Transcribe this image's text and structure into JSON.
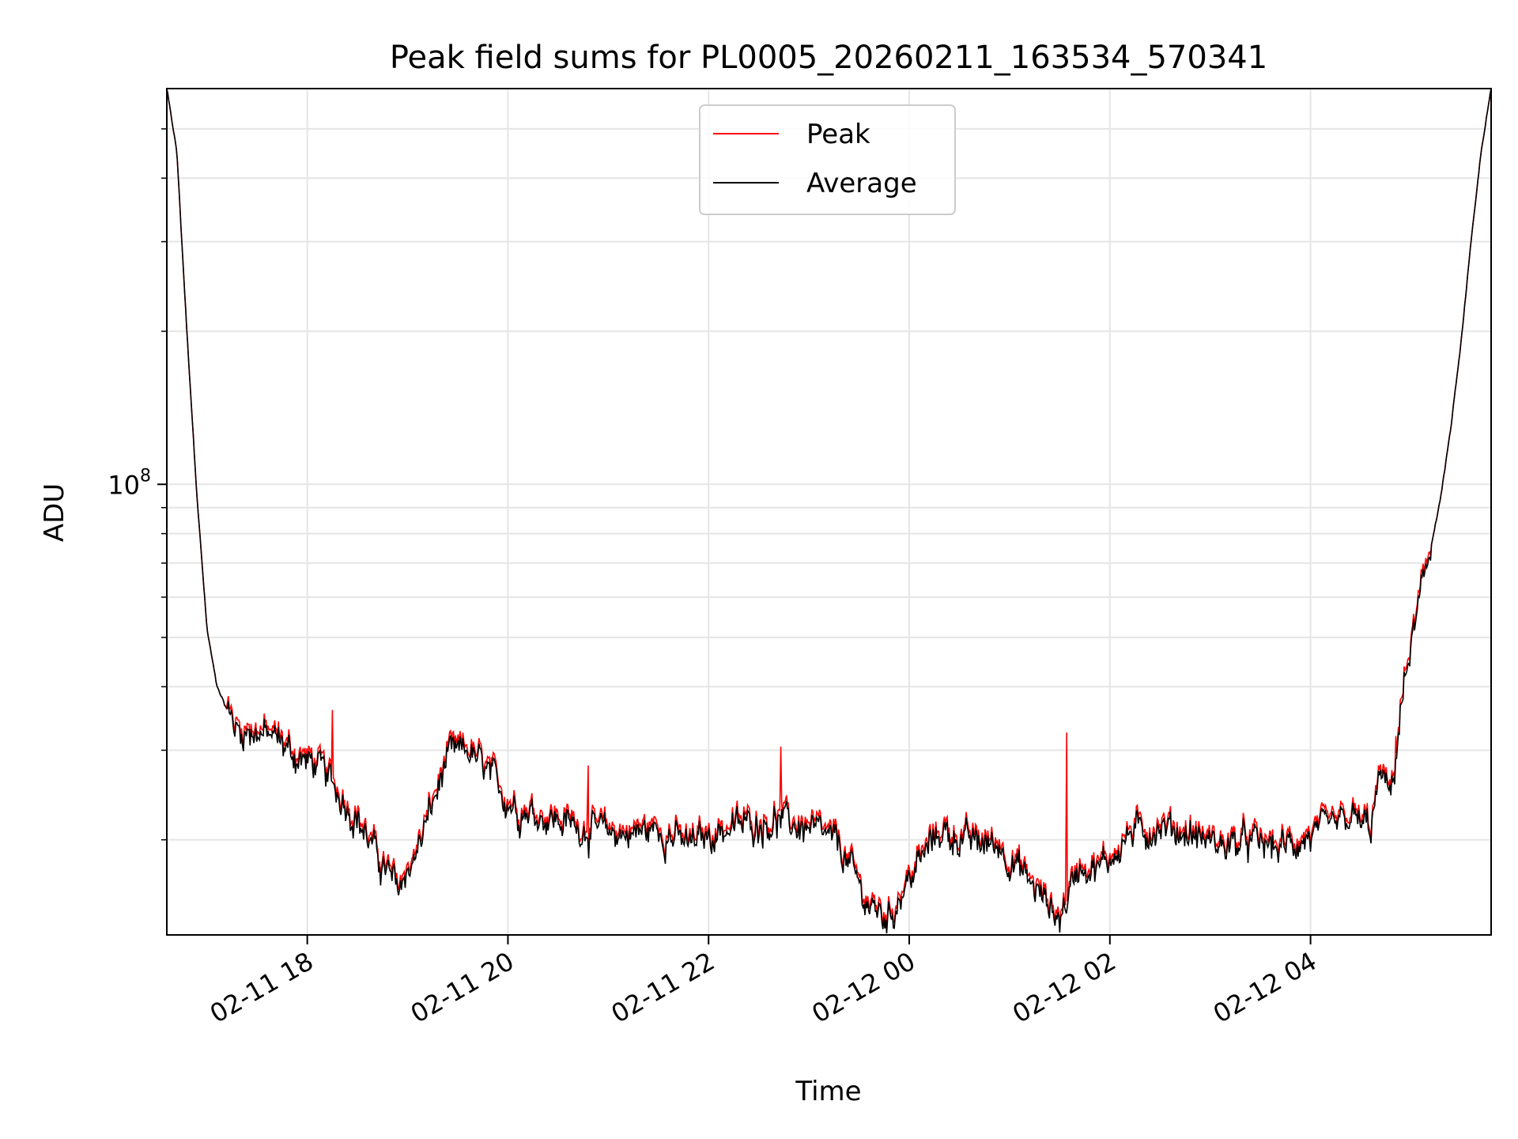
{
  "chart_data": {
    "type": "line",
    "title": "Peak field sums for PL0005_20260211_163534_570341",
    "xlabel": "Time",
    "ylabel": "ADU",
    "yscale": "log",
    "ylim": [
      13000000,
      600000000
    ],
    "xlim_hours": [
      16.6,
      29.8
    ],
    "grid": true,
    "legend_position": "upper center",
    "x_tick_hours": [
      18,
      20,
      22,
      24,
      26,
      28
    ],
    "x_tick_labels": [
      "02-11 18",
      "02-11 20",
      "02-11 22",
      "02-12 00",
      "02-12 02",
      "02-12 04"
    ],
    "y_major_ticks": [
      {
        "value": 100000000,
        "base": "10",
        "exp": "8"
      }
    ],
    "y_minor_ticks": [
      20000000,
      30000000,
      40000000,
      50000000,
      60000000,
      70000000,
      80000000,
      90000000,
      200000000,
      300000000,
      400000000,
      500000000
    ],
    "series_peak_name": "Peak",
    "series_peak_color": "#ff0000",
    "series_avg_name": "Average",
    "series_avg_color": "#000000",
    "average_profile": {
      "hours": [
        16.6,
        16.7,
        16.8,
        16.9,
        17.0,
        17.1,
        17.2,
        17.3,
        17.5,
        17.7,
        17.9,
        18.1,
        18.3,
        18.5,
        18.7,
        18.9,
        19.1,
        19.2,
        19.3,
        19.4,
        19.6,
        19.8,
        20.0,
        20.1,
        20.3,
        20.6,
        20.9,
        21.2,
        21.5,
        21.8,
        22.1,
        22.4,
        22.7,
        23.0,
        23.3,
        23.6,
        23.8,
        23.9,
        24.1,
        24.3,
        24.6,
        24.9,
        25.2,
        25.5,
        25.7,
        25.9,
        26.2,
        26.5,
        26.8,
        27.1,
        27.4,
        27.7,
        28.0,
        28.2,
        28.4,
        28.6,
        28.7,
        28.8,
        28.9,
        29.0,
        29.1,
        29.2,
        29.3,
        29.4,
        29.5,
        29.6,
        29.7,
        29.8
      ],
      "values": [
        600000000,
        450000000,
        200000000,
        95000000,
        52000000,
        40000000,
        36000000,
        33000000,
        32500000,
        31500000,
        29000000,
        28000000,
        25000000,
        22000000,
        18500000,
        16000000,
        19000000,
        22000000,
        25000000,
        29000000,
        30000000,
        27000000,
        24000000,
        23000000,
        22500000,
        21500000,
        20800000,
        20500000,
        21000000,
        19500000,
        20800000,
        21500000,
        21800000,
        21000000,
        19500000,
        14800000,
        14000000,
        15500000,
        18000000,
        20800000,
        19800000,
        19500000,
        16500000,
        14000000,
        18000000,
        17500000,
        20500000,
        21200000,
        20500000,
        19500000,
        19800000,
        19200000,
        20200000,
        21000000,
        22000000,
        21000000,
        27000000,
        24000000,
        36000000,
        48000000,
        60000000,
        75000000,
        95000000,
        130000000,
        190000000,
        300000000,
        450000000,
        600000000
      ]
    },
    "peak_spikes": [
      {
        "hour": 18.25,
        "value": 36000000
      },
      {
        "hour": 20.8,
        "value": 28000000
      },
      {
        "hour": 22.72,
        "value": 30500000
      },
      {
        "hour": 25.57,
        "value": 32500000
      },
      {
        "hour": 28.85,
        "value": 32000000
      }
    ]
  }
}
